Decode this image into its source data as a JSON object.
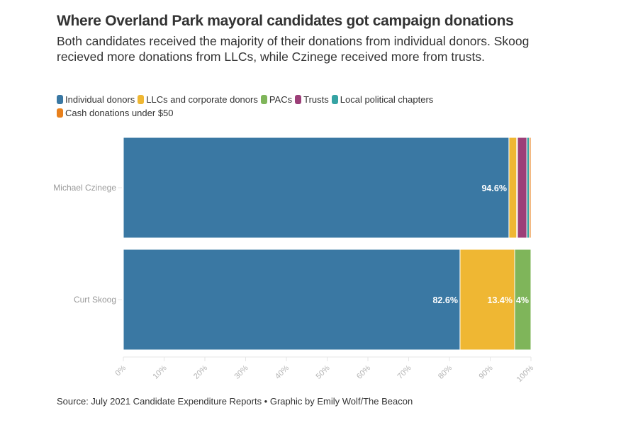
{
  "header": {
    "title": "Where Overland Park mayoral candidates got campaign donations",
    "subtitle": "Both candidates received the majority of their donations from individual donors. Skoog recieved more donations from LLCs, while Czinege received more from trusts."
  },
  "footer": {
    "source": "Source: July 2021 Candidate Expenditure Reports • Graphic by Emily Wolf/The Beacon"
  },
  "chart_data": {
    "type": "bar",
    "orientation": "horizontal",
    "stacked": true,
    "normalized": true,
    "title": "Where Overland Park mayoral candidates got campaign donations",
    "categories": [
      "Michael Czinege",
      "Curt Skoog"
    ],
    "series": [
      {
        "name": "Individual donors",
        "color": "#3a78a3",
        "values": [
          94.6,
          82.6
        ],
        "labels": [
          "94.6%",
          "82.6%"
        ]
      },
      {
        "name": "LLCs and corporate donors",
        "color": "#efb733",
        "values": [
          1.9,
          13.4
        ],
        "labels": [
          "",
          "13.4%"
        ]
      },
      {
        "name": "PACs",
        "color": "#7fb55a",
        "values": [
          0.2,
          4.0
        ],
        "labels": [
          "",
          "4%"
        ]
      },
      {
        "name": "Trusts",
        "color": "#9c3f78",
        "values": [
          2.3,
          0
        ],
        "labels": [
          "",
          ""
        ]
      },
      {
        "name": "Local political chapters",
        "color": "#35a3a3",
        "values": [
          0.6,
          0
        ],
        "labels": [
          "",
          ""
        ]
      },
      {
        "name": "Cash donations under $50",
        "color": "#e8801c",
        "values": [
          0.4,
          0
        ],
        "labels": [
          "",
          ""
        ]
      }
    ],
    "xlim": [
      0,
      100
    ],
    "xticks": [
      "0%",
      "10%",
      "20%",
      "30%",
      "40%",
      "50%",
      "60%",
      "70%",
      "80%",
      "90%",
      "100%"
    ],
    "xlabel": "",
    "ylabel": "",
    "legend_position": "top-left",
    "grid": false
  }
}
